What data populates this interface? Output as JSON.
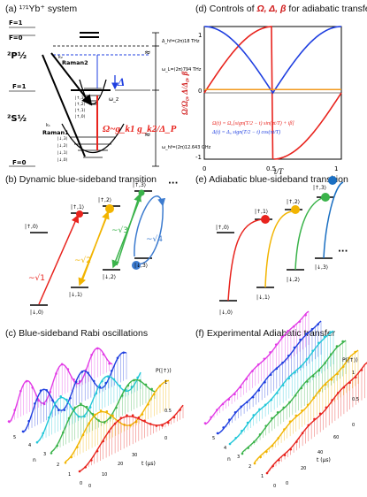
{
  "panels": {
    "a": {
      "label": "(a)",
      "title": "¹⁷¹Yb⁺ system"
    },
    "b": {
      "label": "(b)",
      "title": "Dynamic blue-sideband transition"
    },
    "c": {
      "label": "(c)",
      "title": "Blue-sideband Rabi oscillations"
    },
    "d": {
      "label": "(d)",
      "title_prefix": "Controls of ",
      "title_vars": "Ω, Δ, β",
      "title_suffix": " for adiabatic transfer"
    },
    "e": {
      "label": "(e)",
      "title": "Adiabatic blue-sideband transition"
    },
    "f": {
      "label": "(f)",
      "title": "Experimental Adiabatic transfer"
    }
  },
  "level_diagram": {
    "f1_top": "F=1",
    "f0_top": "F=0",
    "p12": "²P½",
    "f1_mid": "F=1",
    "s12": "²S½",
    "f0_bot": "F=0",
    "delta_hfP": "Δ_hf=(2π)18 THz",
    "omega_L": "ω_L=(2π)794 THz",
    "omega_hf": "ω_hf=(2π)12.643 GHz",
    "raman2": "Raman2",
    "raman1": "Raman1",
    "k2": "k₂",
    "k1": "k₁",
    "big_delta": "Δ",
    "omega_z": "ω_z",
    "omega_eff": "Ω~g_k1 g_k2/Δ_P",
    "states_upper": [
      "|↑,3⟩",
      "|↑,2⟩",
      "|↑,1⟩",
      "|↑,0⟩"
    ],
    "states_lower": [
      "|↓,3⟩",
      "|↓,2⟩",
      "|↓,1⟩",
      "|↓,0⟩"
    ]
  },
  "dynamic_diagram": {
    "up_states": [
      "|↑,0⟩",
      "|↑,1⟩",
      "|↑,2⟩",
      "|↑,3⟩"
    ],
    "down_states": [
      "|↓,0⟩",
      "|↓,1⟩",
      "|↓,2⟩",
      "|↓,3⟩"
    ],
    "couplings": [
      "~√1",
      "~√2",
      "~√3",
      "~√4"
    ],
    "ellipsis": "···",
    "colors": [
      "#e8231d",
      "#f2b400",
      "#3ab34a",
      "#3c7bcf"
    ]
  },
  "adiabatic_diagram": {
    "up_states": [
      "|↑,0⟩",
      "|↑,1⟩",
      "|↑,2⟩",
      "|↑,3⟩"
    ],
    "down_states": [
      "|↓,0⟩",
      "|↓,1⟩",
      "|↓,2⟩",
      "|↓,3⟩"
    ],
    "ellipsis": "···",
    "colors": [
      "#e8231d",
      "#f2b400",
      "#3ab34a",
      "#1a6fc2"
    ]
  },
  "controls_plot": {
    "ylabel": "Ω/Ω₀, Δ/Δ₀, β",
    "xlabel": "t/T",
    "eq_omega": "Ω(t) = Ω₀[sign(T/2 − t) sin(πt/T) + iβ]",
    "eq_delta": "Δ(t) = Δ₀ sign(T/2 − t) cos(πt/T)",
    "xticks": [
      "0",
      "0.5",
      "1"
    ],
    "yticks": [
      "1",
      "0",
      "-1"
    ]
  },
  "chart_data": [
    {
      "type": "line",
      "title": "Controls of Ω, Δ, β for adiabatic transfer",
      "xlabel": "t/T",
      "ylabel": "Ω/Ω₀, Δ/Δ₀, β",
      "xlim": [
        0,
        1
      ],
      "ylim": [
        -1,
        1
      ],
      "x": [
        0,
        0.1,
        0.2,
        0.3,
        0.4,
        0.5,
        0.6,
        0.7,
        0.8,
        0.9,
        1.0
      ],
      "series": [
        {
          "name": "Ω",
          "color": "#e8231d",
          "values": [
            0,
            0.31,
            0.59,
            0.81,
            0.95,
            1.0,
            -0.95,
            -0.81,
            -0.59,
            -0.31,
            0
          ]
        },
        {
          "name": "Δ",
          "color": "#1f3fe0",
          "values": [
            1.0,
            0.95,
            0.81,
            0.59,
            0.31,
            0,
            0.31,
            0.59,
            0.81,
            0.95,
            1.0
          ]
        },
        {
          "name": "β",
          "color": "#f29a1f",
          "values": [
            0.05,
            0.05,
            0.05,
            0.05,
            0.05,
            0.05,
            0.05,
            0.05,
            0.05,
            0.05,
            0.05
          ]
        }
      ]
    },
    {
      "type": "line",
      "title": "Blue-sideband Rabi oscillations",
      "xlabel": "t (μs)",
      "ylabel": "P(|↑⟩)",
      "zlabel": "n",
      "x_ticks": [
        "0",
        "10",
        "20",
        "30"
      ],
      "z_ticks": [
        "0",
        "0.5",
        "1"
      ],
      "n_ticks": [
        "0",
        "1",
        "2",
        "3",
        "4",
        "5"
      ],
      "series_colors": [
        "#e8231d",
        "#f2b400",
        "#3ab34a",
        "#22c7d9",
        "#1f3fe0",
        "#e23be6"
      ]
    },
    {
      "type": "line",
      "title": "Experimental Adiabatic transfer",
      "xlabel": "t (μs)",
      "ylabel": "P(|↑⟩)",
      "zlabel": "n",
      "x_ticks": [
        "0",
        "20",
        "40",
        "60"
      ],
      "z_ticks": [
        "0",
        "0.5",
        "1"
      ],
      "n_ticks": [
        "0",
        "1",
        "2",
        "3",
        "4",
        "5"
      ],
      "series_colors": [
        "#e8231d",
        "#f2b400",
        "#3ab34a",
        "#22c7d9",
        "#1f3fe0",
        "#e23be6"
      ]
    }
  ]
}
